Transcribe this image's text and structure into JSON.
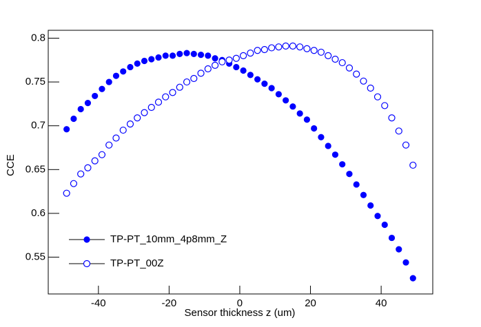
{
  "chart_data": {
    "type": "scatter",
    "xlabel": "Sensor thickness z (um)",
    "ylabel": "CCE",
    "x": [
      -49,
      -47,
      -45,
      -43,
      -41,
      -39,
      -37,
      -35,
      -33,
      -31,
      -29,
      -27,
      -25,
      -23,
      -21,
      -19,
      -17,
      -15,
      -13,
      -11,
      -9,
      -7,
      -5,
      -3,
      -1,
      1,
      3,
      5,
      7,
      9,
      11,
      13,
      15,
      17,
      19,
      21,
      23,
      25,
      27,
      29,
      31,
      33,
      35,
      37,
      39,
      41,
      43,
      45,
      47,
      49
    ],
    "series": [
      {
        "name": "TP-PT_10mm_4p8mm_Z",
        "color": "#0000ff",
        "marker": "filled",
        "values": [
          0.696,
          0.708,
          0.719,
          0.726,
          0.734,
          0.742,
          0.75,
          0.757,
          0.762,
          0.767,
          0.771,
          0.774,
          0.776,
          0.778,
          0.78,
          0.78,
          0.782,
          0.783,
          0.782,
          0.781,
          0.78,
          0.777,
          0.775,
          0.771,
          0.767,
          0.763,
          0.758,
          0.753,
          0.748,
          0.743,
          0.736,
          0.729,
          0.722,
          0.714,
          0.707,
          0.697,
          0.687,
          0.677,
          0.667,
          0.656,
          0.645,
          0.633,
          0.621,
          0.609,
          0.597,
          0.587,
          0.572,
          0.559,
          0.544,
          0.526
        ]
      },
      {
        "name": "TP-PT_00Z",
        "color": "#0000ff",
        "marker": "open",
        "values": [
          0.623,
          0.634,
          0.645,
          0.652,
          0.66,
          0.667,
          0.678,
          0.686,
          0.695,
          0.702,
          0.709,
          0.715,
          0.721,
          0.727,
          0.733,
          0.738,
          0.744,
          0.75,
          0.754,
          0.76,
          0.765,
          0.769,
          0.773,
          0.775,
          0.777,
          0.78,
          0.783,
          0.786,
          0.787,
          0.789,
          0.79,
          0.791,
          0.791,
          0.79,
          0.788,
          0.786,
          0.784,
          0.78,
          0.776,
          0.772,
          0.766,
          0.759,
          0.751,
          0.743,
          0.733,
          0.723,
          0.709,
          0.694,
          0.678,
          0.655
        ]
      }
    ],
    "xlim": [
      -54.2,
      54.6
    ],
    "xticks": [
      -40,
      -20,
      0,
      20,
      40
    ],
    "ylim": [
      0.508,
      0.809
    ],
    "yticks": [
      0.55,
      0.6,
      0.65,
      0.7,
      0.75,
      0.8
    ],
    "legend": "lower left"
  }
}
